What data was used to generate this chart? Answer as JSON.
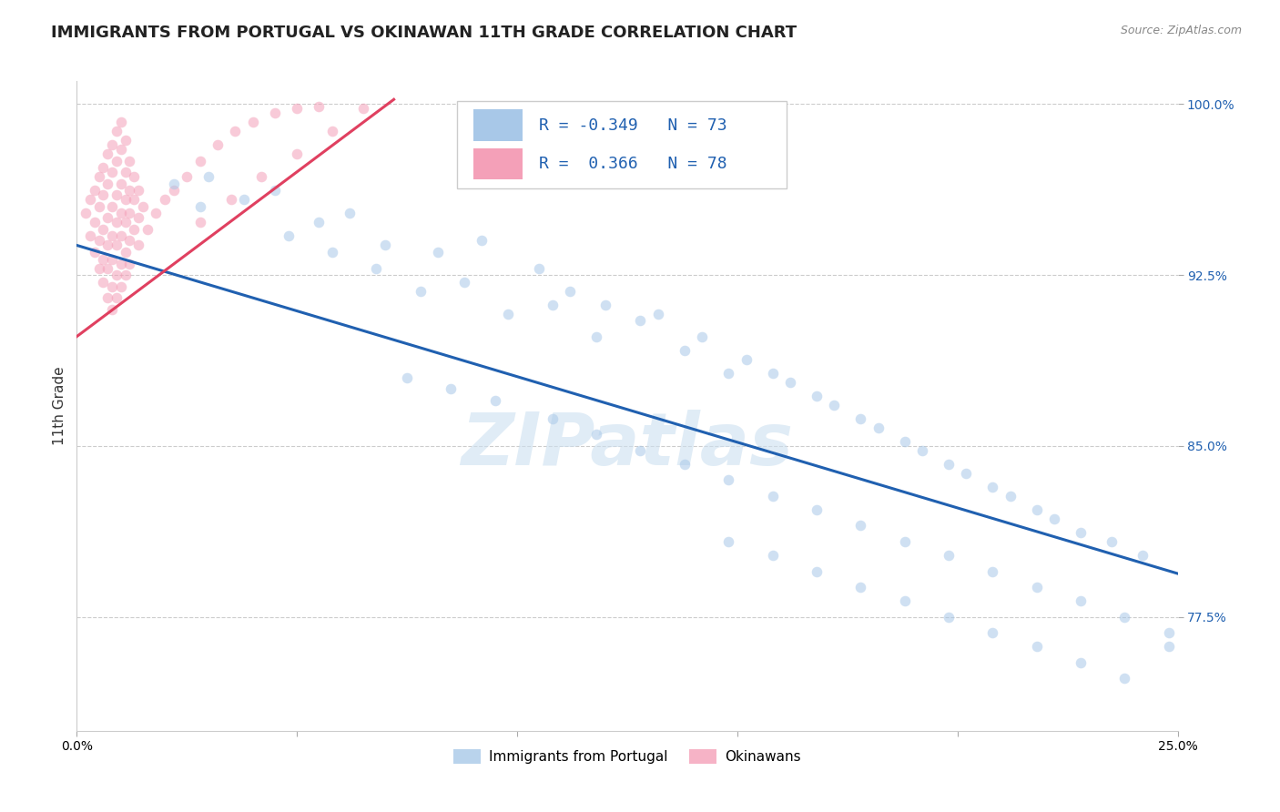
{
  "title": "IMMIGRANTS FROM PORTUGAL VS OKINAWAN 11TH GRADE CORRELATION CHART",
  "source": "Source: ZipAtlas.com",
  "ylabel": "11th Grade",
  "watermark": "ZIPatlas",
  "xlim": [
    0.0,
    0.25
  ],
  "ylim": [
    0.725,
    1.01
  ],
  "ytick_positions": [
    0.775,
    0.85,
    0.925,
    1.0
  ],
  "ytick_labels": [
    "77.5%",
    "85.0%",
    "92.5%",
    "100.0%"
  ],
  "blue_color": "#a8c8e8",
  "pink_color": "#f4a0b8",
  "blue_line_color": "#2060b0",
  "pink_line_color": "#e04060",
  "legend_R1": "-0.349",
  "legend_N1": "73",
  "legend_R2": " 0.366",
  "legend_N2": "78",
  "blue_scatter_x": [
    0.022,
    0.03,
    0.038,
    0.045,
    0.028,
    0.055,
    0.062,
    0.07,
    0.048,
    0.058,
    0.068,
    0.082,
    0.092,
    0.088,
    0.078,
    0.105,
    0.112,
    0.108,
    0.098,
    0.12,
    0.132,
    0.128,
    0.118,
    0.142,
    0.138,
    0.152,
    0.148,
    0.158,
    0.162,
    0.168,
    0.172,
    0.178,
    0.182,
    0.188,
    0.192,
    0.198,
    0.202,
    0.208,
    0.212,
    0.218,
    0.222,
    0.228,
    0.235,
    0.242,
    0.075,
    0.085,
    0.095,
    0.108,
    0.118,
    0.128,
    0.138,
    0.148,
    0.158,
    0.168,
    0.178,
    0.188,
    0.198,
    0.208,
    0.218,
    0.228,
    0.238,
    0.248,
    0.148,
    0.158,
    0.168,
    0.178,
    0.188,
    0.198,
    0.208,
    0.218,
    0.228,
    0.238,
    0.248
  ],
  "blue_scatter_y": [
    0.965,
    0.968,
    0.958,
    0.962,
    0.955,
    0.948,
    0.952,
    0.938,
    0.942,
    0.935,
    0.928,
    0.935,
    0.94,
    0.922,
    0.918,
    0.928,
    0.918,
    0.912,
    0.908,
    0.912,
    0.908,
    0.905,
    0.898,
    0.898,
    0.892,
    0.888,
    0.882,
    0.882,
    0.878,
    0.872,
    0.868,
    0.862,
    0.858,
    0.852,
    0.848,
    0.842,
    0.838,
    0.832,
    0.828,
    0.822,
    0.818,
    0.812,
    0.808,
    0.802,
    0.88,
    0.875,
    0.87,
    0.862,
    0.855,
    0.848,
    0.842,
    0.835,
    0.828,
    0.822,
    0.815,
    0.808,
    0.802,
    0.795,
    0.788,
    0.782,
    0.775,
    0.768,
    0.808,
    0.802,
    0.795,
    0.788,
    0.782,
    0.775,
    0.768,
    0.762,
    0.755,
    0.748,
    0.762
  ],
  "pink_scatter_x": [
    0.002,
    0.003,
    0.004,
    0.005,
    0.006,
    0.007,
    0.008,
    0.009,
    0.01,
    0.003,
    0.004,
    0.005,
    0.006,
    0.007,
    0.008,
    0.009,
    0.01,
    0.011,
    0.004,
    0.005,
    0.006,
    0.007,
    0.008,
    0.009,
    0.01,
    0.011,
    0.012,
    0.005,
    0.006,
    0.007,
    0.008,
    0.009,
    0.01,
    0.011,
    0.012,
    0.013,
    0.006,
    0.007,
    0.008,
    0.009,
    0.01,
    0.011,
    0.012,
    0.013,
    0.014,
    0.007,
    0.008,
    0.009,
    0.01,
    0.011,
    0.012,
    0.013,
    0.014,
    0.015,
    0.008,
    0.009,
    0.01,
    0.011,
    0.012,
    0.014,
    0.016,
    0.018,
    0.02,
    0.022,
    0.025,
    0.028,
    0.032,
    0.036,
    0.04,
    0.045,
    0.05,
    0.055,
    0.028,
    0.035,
    0.042,
    0.05,
    0.058,
    0.065
  ],
  "pink_scatter_y": [
    0.952,
    0.958,
    0.962,
    0.968,
    0.972,
    0.978,
    0.982,
    0.988,
    0.992,
    0.942,
    0.948,
    0.955,
    0.96,
    0.965,
    0.97,
    0.975,
    0.98,
    0.984,
    0.935,
    0.94,
    0.945,
    0.95,
    0.955,
    0.96,
    0.965,
    0.97,
    0.975,
    0.928,
    0.932,
    0.938,
    0.942,
    0.948,
    0.952,
    0.958,
    0.962,
    0.968,
    0.922,
    0.928,
    0.932,
    0.938,
    0.942,
    0.948,
    0.952,
    0.958,
    0.962,
    0.915,
    0.92,
    0.925,
    0.93,
    0.935,
    0.94,
    0.945,
    0.95,
    0.955,
    0.91,
    0.915,
    0.92,
    0.925,
    0.93,
    0.938,
    0.945,
    0.952,
    0.958,
    0.962,
    0.968,
    0.975,
    0.982,
    0.988,
    0.992,
    0.996,
    0.998,
    0.999,
    0.948,
    0.958,
    0.968,
    0.978,
    0.988,
    0.998
  ],
  "blue_line_x": [
    0.0,
    0.25
  ],
  "blue_line_y": [
    0.938,
    0.794
  ],
  "pink_line_x": [
    0.0,
    0.072
  ],
  "pink_line_y": [
    0.898,
    1.002
  ],
  "background_color": "#ffffff",
  "scatter_size": 70,
  "scatter_alpha": 0.55,
  "title_fontsize": 13,
  "axis_label_fontsize": 11,
  "tick_fontsize": 10,
  "legend_fontsize": 13,
  "right_tick_color": "#2060b0"
}
